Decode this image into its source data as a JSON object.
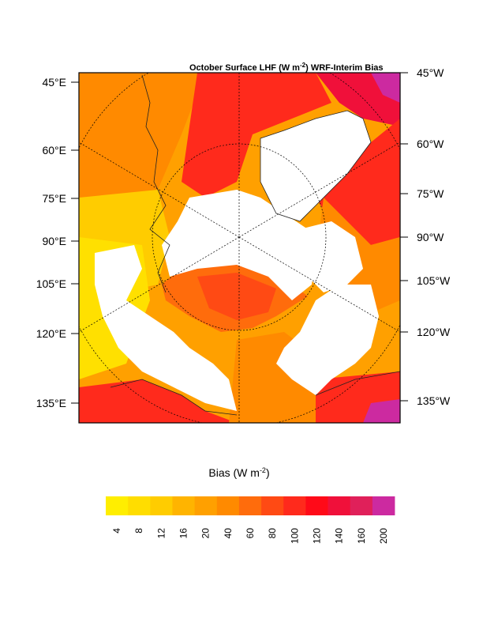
{
  "map": {
    "title_main": "October Surface LHF (W m",
    "title_sup": "-2",
    "title_rest": ") WRF-Interim Bias",
    "left_labels": [
      "45°E",
      "60°E",
      "75°E",
      "90°E",
      "105°E",
      "120°E",
      "135°E"
    ],
    "right_labels": [
      "45°W",
      "60°W",
      "75°W",
      "90°W",
      "105°W",
      "120°W",
      "135°W"
    ]
  },
  "colorbar": {
    "title_main": "Bias (W m",
    "title_sup": "-2",
    "title_rest": ")",
    "ticks": [
      "4",
      "8",
      "12",
      "16",
      "20",
      "40",
      "60",
      "80",
      "100",
      "120",
      "140",
      "160",
      "200"
    ],
    "colors": [
      "#ffee00",
      "#ffdd00",
      "#ffcc00",
      "#ffb400",
      "#ffa000",
      "#ff8a00",
      "#ff6c0c",
      "#ff4a14",
      "#ff2a1c",
      "#ff0a18",
      "#f0103a",
      "#e0205a",
      "#cc2aa0"
    ]
  }
}
